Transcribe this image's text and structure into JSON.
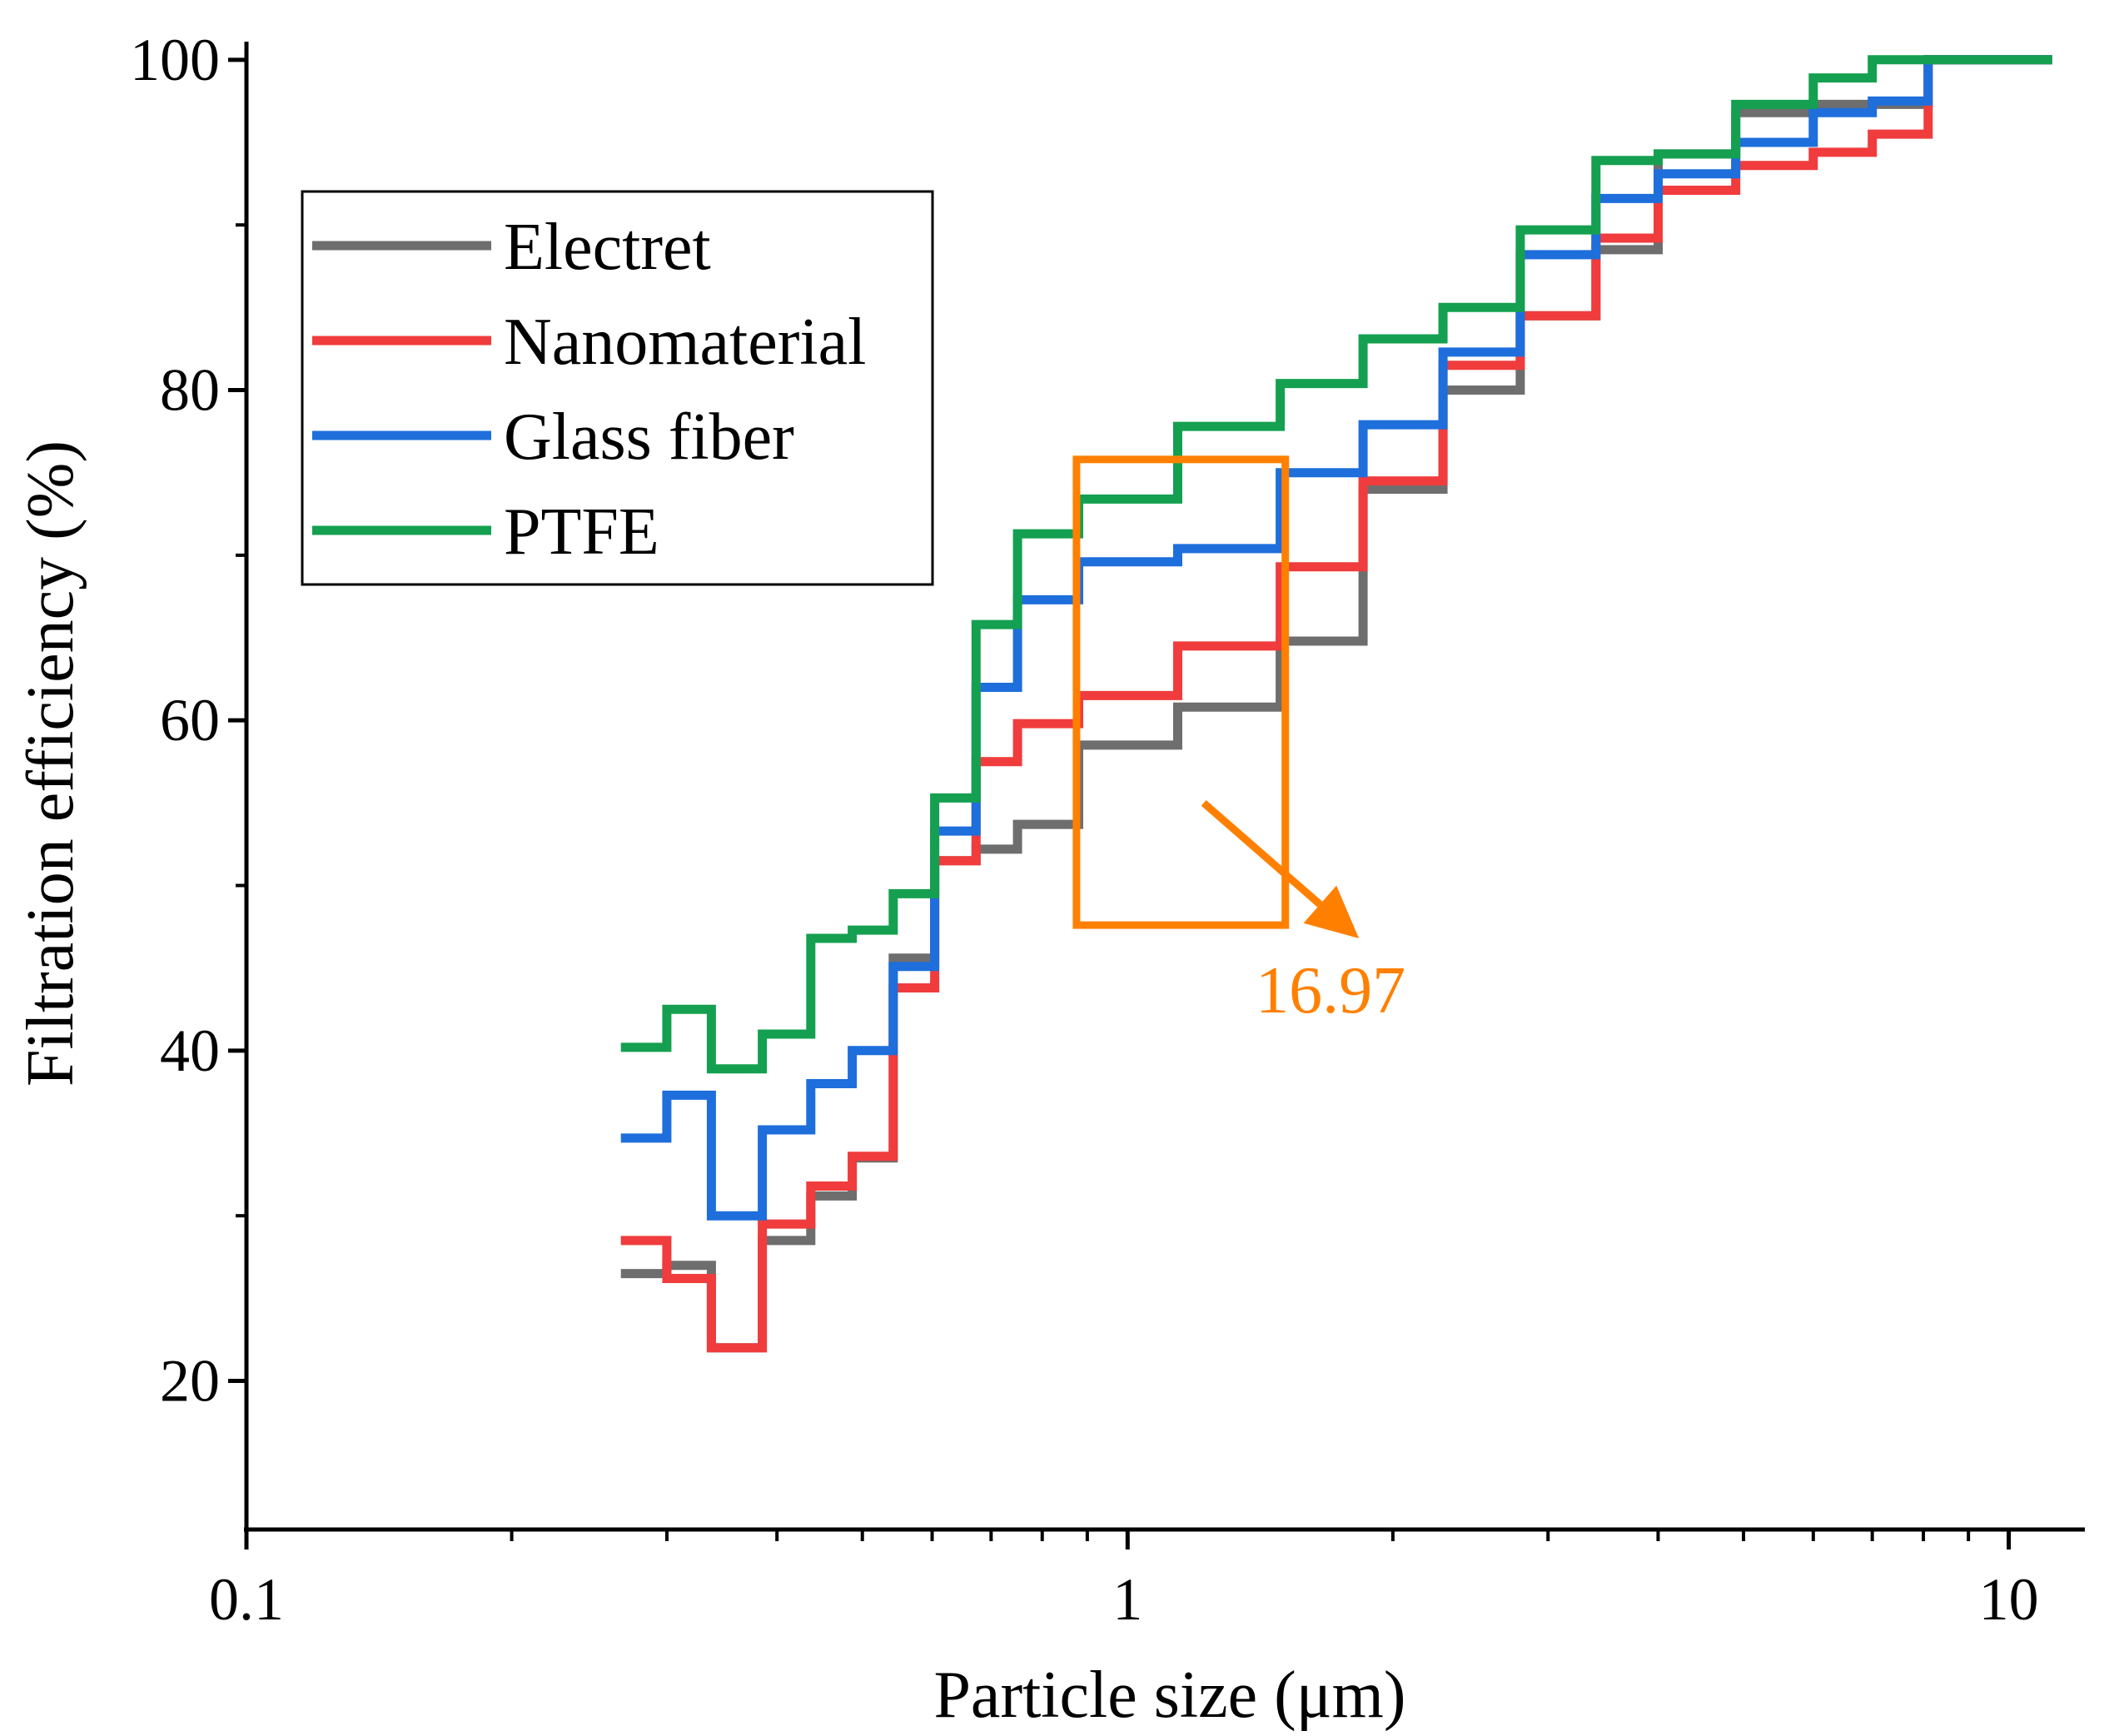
{
  "chart_data": {
    "type": "line",
    "step": true,
    "title": "",
    "xlabel": "Particle size (μm)",
    "ylabel": "Filtration efficiency (%)",
    "xscale": "log",
    "xlim": [
      0.1,
      12.2
    ],
    "ylim": [
      11,
      101
    ],
    "xticks": [
      {
        "value": 0.1,
        "label": "0.1"
      },
      {
        "value": 1,
        "label": "1"
      },
      {
        "value": 10,
        "label": "10"
      }
    ],
    "yticks": [
      {
        "value": 20,
        "label": "20"
      },
      {
        "value": 40,
        "label": "40"
      },
      {
        "value": 60,
        "label": "60"
      },
      {
        "value": 80,
        "label": "80"
      },
      {
        "value": 100,
        "label": "100"
      }
    ],
    "legend_position": "top-left",
    "bin_edges": [
      0.266,
      0.3,
      0.337,
      0.385,
      0.437,
      0.487,
      0.542,
      0.604,
      0.673,
      0.75,
      0.88,
      1.14,
      1.49,
      1.85,
      2.28,
      2.79,
      3.4,
      4.0,
      4.9,
      6.0,
      7.0,
      8.1,
      11.2
    ],
    "series": [
      {
        "name": "Electret",
        "color": "#6e6e6e",
        "values": [
          26.5,
          27.0,
          22.0,
          28.5,
          31.2,
          33.5,
          45.6,
          51.5,
          52.2,
          53.7,
          58.5,
          60.8,
          64.8,
          74.0,
          80.0,
          84.5,
          88.5,
          94.3,
          96.8,
          97.3,
          97.3,
          100
        ]
      },
      {
        "name": "Nanomaterial",
        "color": "#f03c3c",
        "values": [
          28.5,
          26.2,
          22.0,
          29.5,
          31.8,
          33.6,
          43.8,
          51.5,
          57.5,
          59.8,
          61.5,
          64.5,
          69.3,
          74.5,
          81.5,
          84.5,
          89.2,
          92.1,
          93.6,
          94.4,
          95.5,
          100
        ]
      },
      {
        "name": "Glass fiber",
        "color": "#1e6edc",
        "values": [
          34.7,
          37.3,
          30.0,
          35.2,
          38.0,
          40.0,
          45.1,
          53.3,
          62.0,
          67.3,
          69.6,
          70.4,
          75.0,
          77.9,
          82.3,
          88.2,
          91.6,
          93.1,
          95.0,
          96.8,
          97.5,
          100
        ]
      },
      {
        "name": "PTFE",
        "color": "#14a050",
        "values": [
          40.2,
          42.5,
          38.9,
          41.0,
          46.8,
          47.3,
          49.5,
          55.3,
          65.8,
          71.3,
          73.4,
          77.8,
          80.4,
          83.1,
          85.0,
          89.7,
          93.9,
          94.3,
          97.3,
          98.9,
          100,
          100
        ]
      }
    ],
    "annotations": {
      "box_x_range": [
        0.875,
        1.51
      ],
      "box_y_range": [
        47.6,
        75.8
      ],
      "arrow_from": [
        1.22,
        55.0
      ],
      "arrow_to": [
        1.83,
        46.8
      ],
      "label": "16.97",
      "label_anchor": [
        1.7,
        42.3
      ],
      "color": "#ff8000"
    }
  }
}
